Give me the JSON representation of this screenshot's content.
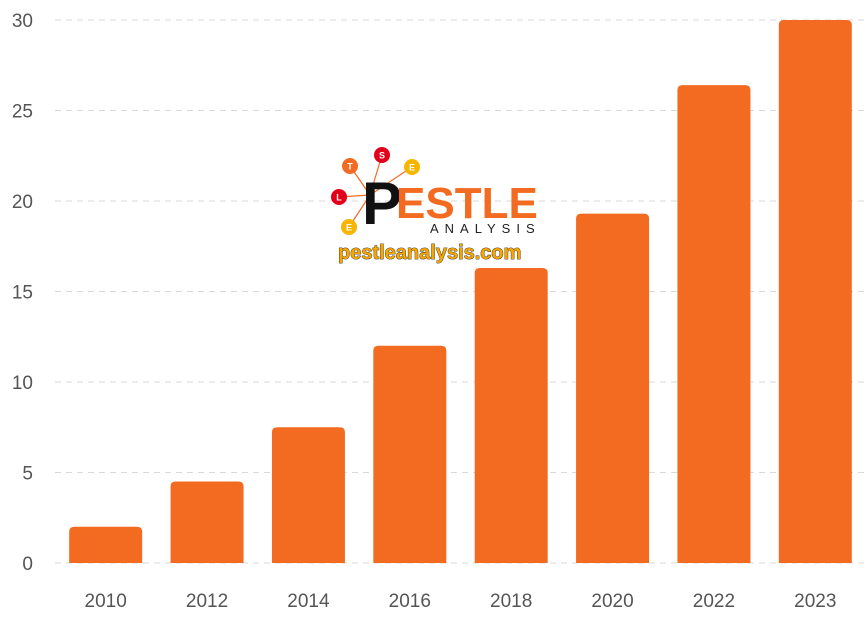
{
  "chart_data": {
    "type": "bar",
    "categories": [
      "2010",
      "2012",
      "2014",
      "2016",
      "2018",
      "2020",
      "2022",
      "2023"
    ],
    "values": [
      2,
      4.5,
      7.5,
      12,
      16.3,
      19.3,
      26.4,
      30
    ],
    "title": "",
    "xlabel": "",
    "ylabel": "",
    "ylim": [
      0,
      30
    ],
    "yticks": [
      "0",
      "5",
      "10",
      "15",
      "20",
      "25",
      "30"
    ],
    "grid": true,
    "bar_color": "#f26b21"
  },
  "watermark": {
    "word": "ESTLE",
    "initial": "P",
    "subtitle": "ANALYSIS",
    "url": "pestleanalysis.com",
    "nodes": [
      "T",
      "S",
      "E",
      "L",
      "E"
    ]
  }
}
